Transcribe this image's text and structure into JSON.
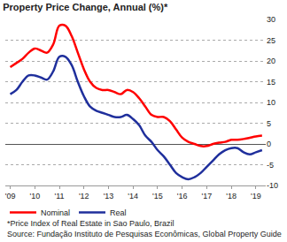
{
  "chart_data": {
    "type": "line",
    "title": "Property Price Change, Annual (%)*",
    "footnote": "*Price Index of Real Estate in Sao Paulo, Brazil",
    "source": "Source: Fundação Instituto de Pesquisas Econômicas, Global Property Guide",
    "x": [
      2009.0,
      2009.25,
      2009.5,
      2009.75,
      2010.0,
      2010.25,
      2010.5,
      2010.75,
      2011.0,
      2011.25,
      2011.5,
      2011.75,
      2012.0,
      2012.25,
      2012.5,
      2012.75,
      2013.0,
      2013.25,
      2013.5,
      2013.75,
      2014.0,
      2014.25,
      2014.5,
      2014.75,
      2015.0,
      2015.25,
      2015.5,
      2015.75,
      2016.0,
      2016.25,
      2016.5,
      2016.75,
      2017.0,
      2017.25,
      2017.5,
      2017.75,
      2018.0,
      2018.25,
      2018.5,
      2018.75,
      2019.0,
      2019.25
    ],
    "series": [
      {
        "name": "Nominal",
        "color": "#ff0000",
        "values": [
          18.5,
          19.5,
          20.5,
          22,
          23,
          22.5,
          22,
          24,
          28.5,
          28.5,
          26,
          22,
          18,
          15,
          13.5,
          13,
          13,
          12.5,
          12,
          13,
          12.5,
          11,
          9,
          7,
          6.5,
          6.5,
          5.5,
          3.5,
          1.5,
          0.5,
          0,
          -0.5,
          -0.5,
          0,
          0.3,
          0.5,
          1,
          1,
          1.2,
          1.5,
          1.8,
          2
        ]
      },
      {
        "name": "Real",
        "color": "#1f2f9c",
        "values": [
          12,
          13,
          15,
          16.5,
          16.5,
          16,
          15.5,
          17.5,
          21,
          21,
          19,
          15,
          11.5,
          9,
          8,
          7.5,
          7,
          6.5,
          6.5,
          7,
          6,
          4.5,
          2,
          0.5,
          -1.5,
          -3,
          -5,
          -7,
          -8,
          -8.5,
          -8,
          -7,
          -5.5,
          -4,
          -2.5,
          -1.5,
          -1,
          -1,
          -2,
          -2.5,
          -2,
          -1.5
        ]
      }
    ],
    "xlim": [
      2008.8,
      2019.4
    ],
    "xticks": [
      {
        "value": 2009,
        "label": "'09"
      },
      {
        "value": 2010,
        "label": "'10"
      },
      {
        "value": 2011,
        "label": "'11"
      },
      {
        "value": 2012,
        "label": "'12"
      },
      {
        "value": 2013,
        "label": "'13"
      },
      {
        "value": 2014,
        "label": "'14"
      },
      {
        "value": 2015,
        "label": "'15"
      },
      {
        "value": 2016,
        "label": "'16"
      },
      {
        "value": 2017,
        "label": "'17"
      },
      {
        "value": 2018,
        "label": "'18"
      },
      {
        "value": 2019,
        "label": "'19"
      }
    ],
    "ylim": [
      -10,
      30
    ],
    "yticks": [
      -10,
      -5,
      0,
      5,
      10,
      15,
      20,
      25,
      30
    ],
    "grid": true,
    "legend": "bottom left"
  }
}
